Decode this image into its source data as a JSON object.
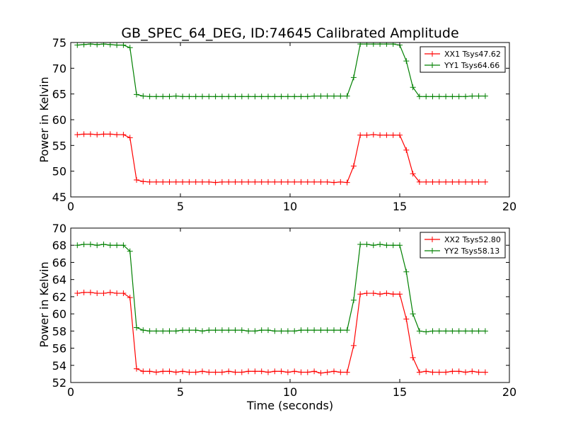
{
  "figure": {
    "title": "GB_SPEC_64_DEG, ID:74645 Calibrated Amplitude",
    "xlabel": "Time (seconds)"
  },
  "chart_data": [
    {
      "type": "line",
      "ylabel": "Power in Kelvin",
      "xlim": [
        0,
        20
      ],
      "ylim": [
        45,
        75
      ],
      "xticks": [
        0,
        5,
        10,
        15,
        20
      ],
      "yticks": [
        45,
        50,
        55,
        60,
        65,
        70,
        75
      ],
      "legend_position": "top-right",
      "grid": false,
      "series": [
        {
          "name": "XX1 Tsys47.62",
          "color": "#ff0000",
          "x": [
            0.3,
            0.6,
            0.9,
            1.2,
            1.5,
            1.8,
            2.1,
            2.4,
            2.7,
            3.0,
            3.3,
            3.6,
            3.9,
            4.2,
            4.5,
            4.8,
            5.1,
            5.4,
            5.7,
            6.0,
            6.3,
            6.6,
            6.9,
            7.2,
            7.5,
            7.8,
            8.1,
            8.4,
            8.7,
            9.0,
            9.3,
            9.6,
            9.9,
            10.2,
            10.5,
            10.8,
            11.1,
            11.4,
            11.7,
            12.0,
            12.3,
            12.6,
            12.9,
            13.2,
            13.5,
            13.8,
            14.1,
            14.4,
            14.7,
            15.0,
            15.3,
            15.6,
            15.9,
            16.2,
            16.5,
            16.8,
            17.1,
            17.4,
            17.7,
            18.0,
            18.3,
            18.6,
            18.9
          ],
          "y": [
            57.1,
            57.2,
            57.2,
            57.1,
            57.2,
            57.2,
            57.1,
            57.1,
            56.5,
            48.3,
            48.0,
            47.9,
            47.9,
            47.9,
            47.9,
            47.9,
            47.9,
            47.9,
            47.9,
            47.9,
            47.9,
            47.8,
            47.9,
            47.9,
            47.9,
            47.9,
            47.9,
            47.9,
            47.9,
            47.9,
            47.9,
            47.9,
            47.9,
            47.9,
            47.9,
            47.9,
            47.9,
            47.9,
            47.9,
            47.8,
            47.9,
            47.8,
            51.0,
            57.0,
            57.0,
            57.1,
            57.0,
            57.0,
            57.0,
            57.0,
            54.1,
            49.5,
            47.9,
            47.9,
            47.9,
            47.9,
            47.9,
            47.9,
            47.9,
            47.9,
            47.9,
            47.9,
            47.9
          ]
        },
        {
          "name": "YY1 Tsys64.66",
          "color": "#008000",
          "x": [
            0.3,
            0.6,
            0.9,
            1.2,
            1.5,
            1.8,
            2.1,
            2.4,
            2.7,
            3.0,
            3.3,
            3.6,
            3.9,
            4.2,
            4.5,
            4.8,
            5.1,
            5.4,
            5.7,
            6.0,
            6.3,
            6.6,
            6.9,
            7.2,
            7.5,
            7.8,
            8.1,
            8.4,
            8.7,
            9.0,
            9.3,
            9.6,
            9.9,
            10.2,
            10.5,
            10.8,
            11.1,
            11.4,
            11.7,
            12.0,
            12.3,
            12.6,
            12.9,
            13.2,
            13.5,
            13.8,
            14.1,
            14.4,
            14.7,
            15.0,
            15.3,
            15.6,
            15.9,
            16.2,
            16.5,
            16.8,
            17.1,
            17.4,
            17.7,
            18.0,
            18.3,
            18.6,
            18.9
          ],
          "y": [
            74.5,
            74.6,
            74.7,
            74.6,
            74.7,
            74.6,
            74.5,
            74.5,
            74.0,
            64.9,
            64.6,
            64.5,
            64.5,
            64.5,
            64.5,
            64.6,
            64.5,
            64.5,
            64.5,
            64.5,
            64.5,
            64.5,
            64.5,
            64.5,
            64.5,
            64.5,
            64.5,
            64.5,
            64.5,
            64.5,
            64.5,
            64.5,
            64.5,
            64.5,
            64.5,
            64.5,
            64.6,
            64.6,
            64.6,
            64.6,
            64.6,
            64.6,
            68.2,
            74.7,
            74.7,
            74.7,
            74.7,
            74.7,
            74.7,
            74.5,
            71.4,
            66.3,
            64.5,
            64.5,
            64.5,
            64.5,
            64.5,
            64.5,
            64.5,
            64.5,
            64.6,
            64.6,
            64.6
          ]
        }
      ]
    },
    {
      "type": "line",
      "ylabel": "Power in Kelvin",
      "xlim": [
        0,
        20
      ],
      "ylim": [
        52,
        70
      ],
      "xticks": [
        0,
        5,
        10,
        15,
        20
      ],
      "yticks": [
        52,
        54,
        56,
        58,
        60,
        62,
        64,
        66,
        68,
        70
      ],
      "legend_position": "top-right",
      "grid": false,
      "series": [
        {
          "name": "XX2 Tsys52.80",
          "color": "#ff0000",
          "x": [
            0.3,
            0.6,
            0.9,
            1.2,
            1.5,
            1.8,
            2.1,
            2.4,
            2.7,
            3.0,
            3.3,
            3.6,
            3.9,
            4.2,
            4.5,
            4.8,
            5.1,
            5.4,
            5.7,
            6.0,
            6.3,
            6.6,
            6.9,
            7.2,
            7.5,
            7.8,
            8.1,
            8.4,
            8.7,
            9.0,
            9.3,
            9.6,
            9.9,
            10.2,
            10.5,
            10.8,
            11.1,
            11.4,
            11.7,
            12.0,
            12.3,
            12.6,
            12.9,
            13.2,
            13.5,
            13.8,
            14.1,
            14.4,
            14.7,
            15.0,
            15.3,
            15.6,
            15.9,
            16.2,
            16.5,
            16.8,
            17.1,
            17.4,
            17.7,
            18.0,
            18.3,
            18.6,
            18.9
          ],
          "y": [
            62.4,
            62.5,
            62.5,
            62.4,
            62.4,
            62.5,
            62.4,
            62.4,
            61.9,
            53.6,
            53.3,
            53.3,
            53.2,
            53.3,
            53.3,
            53.2,
            53.3,
            53.2,
            53.2,
            53.3,
            53.2,
            53.2,
            53.2,
            53.3,
            53.2,
            53.2,
            53.3,
            53.3,
            53.3,
            53.2,
            53.3,
            53.3,
            53.2,
            53.3,
            53.2,
            53.2,
            53.3,
            53.1,
            53.2,
            53.3,
            53.2,
            53.2,
            56.3,
            62.3,
            62.4,
            62.4,
            62.3,
            62.4,
            62.3,
            62.3,
            59.4,
            54.9,
            53.2,
            53.3,
            53.2,
            53.2,
            53.2,
            53.3,
            53.3,
            53.2,
            53.3,
            53.2,
            53.2
          ]
        },
        {
          "name": "YY2 Tsys58.13",
          "color": "#008000",
          "x": [
            0.3,
            0.6,
            0.9,
            1.2,
            1.5,
            1.8,
            2.1,
            2.4,
            2.7,
            3.0,
            3.3,
            3.6,
            3.9,
            4.2,
            4.5,
            4.8,
            5.1,
            5.4,
            5.7,
            6.0,
            6.3,
            6.6,
            6.9,
            7.2,
            7.5,
            7.8,
            8.1,
            8.4,
            8.7,
            9.0,
            9.3,
            9.6,
            9.9,
            10.2,
            10.5,
            10.8,
            11.1,
            11.4,
            11.7,
            12.0,
            12.3,
            12.6,
            12.9,
            13.2,
            13.5,
            13.8,
            14.1,
            14.4,
            14.7,
            15.0,
            15.3,
            15.6,
            15.9,
            16.2,
            16.5,
            16.8,
            17.1,
            17.4,
            17.7,
            18.0,
            18.3,
            18.6,
            18.9
          ],
          "y": [
            68.0,
            68.1,
            68.1,
            68.0,
            68.1,
            68.0,
            68.0,
            68.0,
            67.3,
            58.4,
            58.1,
            58.0,
            58.0,
            58.0,
            58.0,
            58.0,
            58.1,
            58.1,
            58.1,
            58.0,
            58.1,
            58.1,
            58.1,
            58.1,
            58.1,
            58.1,
            58.0,
            58.0,
            58.1,
            58.1,
            58.0,
            58.0,
            58.0,
            58.0,
            58.1,
            58.1,
            58.1,
            58.1,
            58.1,
            58.1,
            58.1,
            58.1,
            61.6,
            68.1,
            68.1,
            68.0,
            68.1,
            68.0,
            68.0,
            68.0,
            64.9,
            60.0,
            58.0,
            57.9,
            58.0,
            58.0,
            58.0,
            58.0,
            58.0,
            58.0,
            58.0,
            58.0,
            58.0
          ]
        }
      ]
    }
  ]
}
